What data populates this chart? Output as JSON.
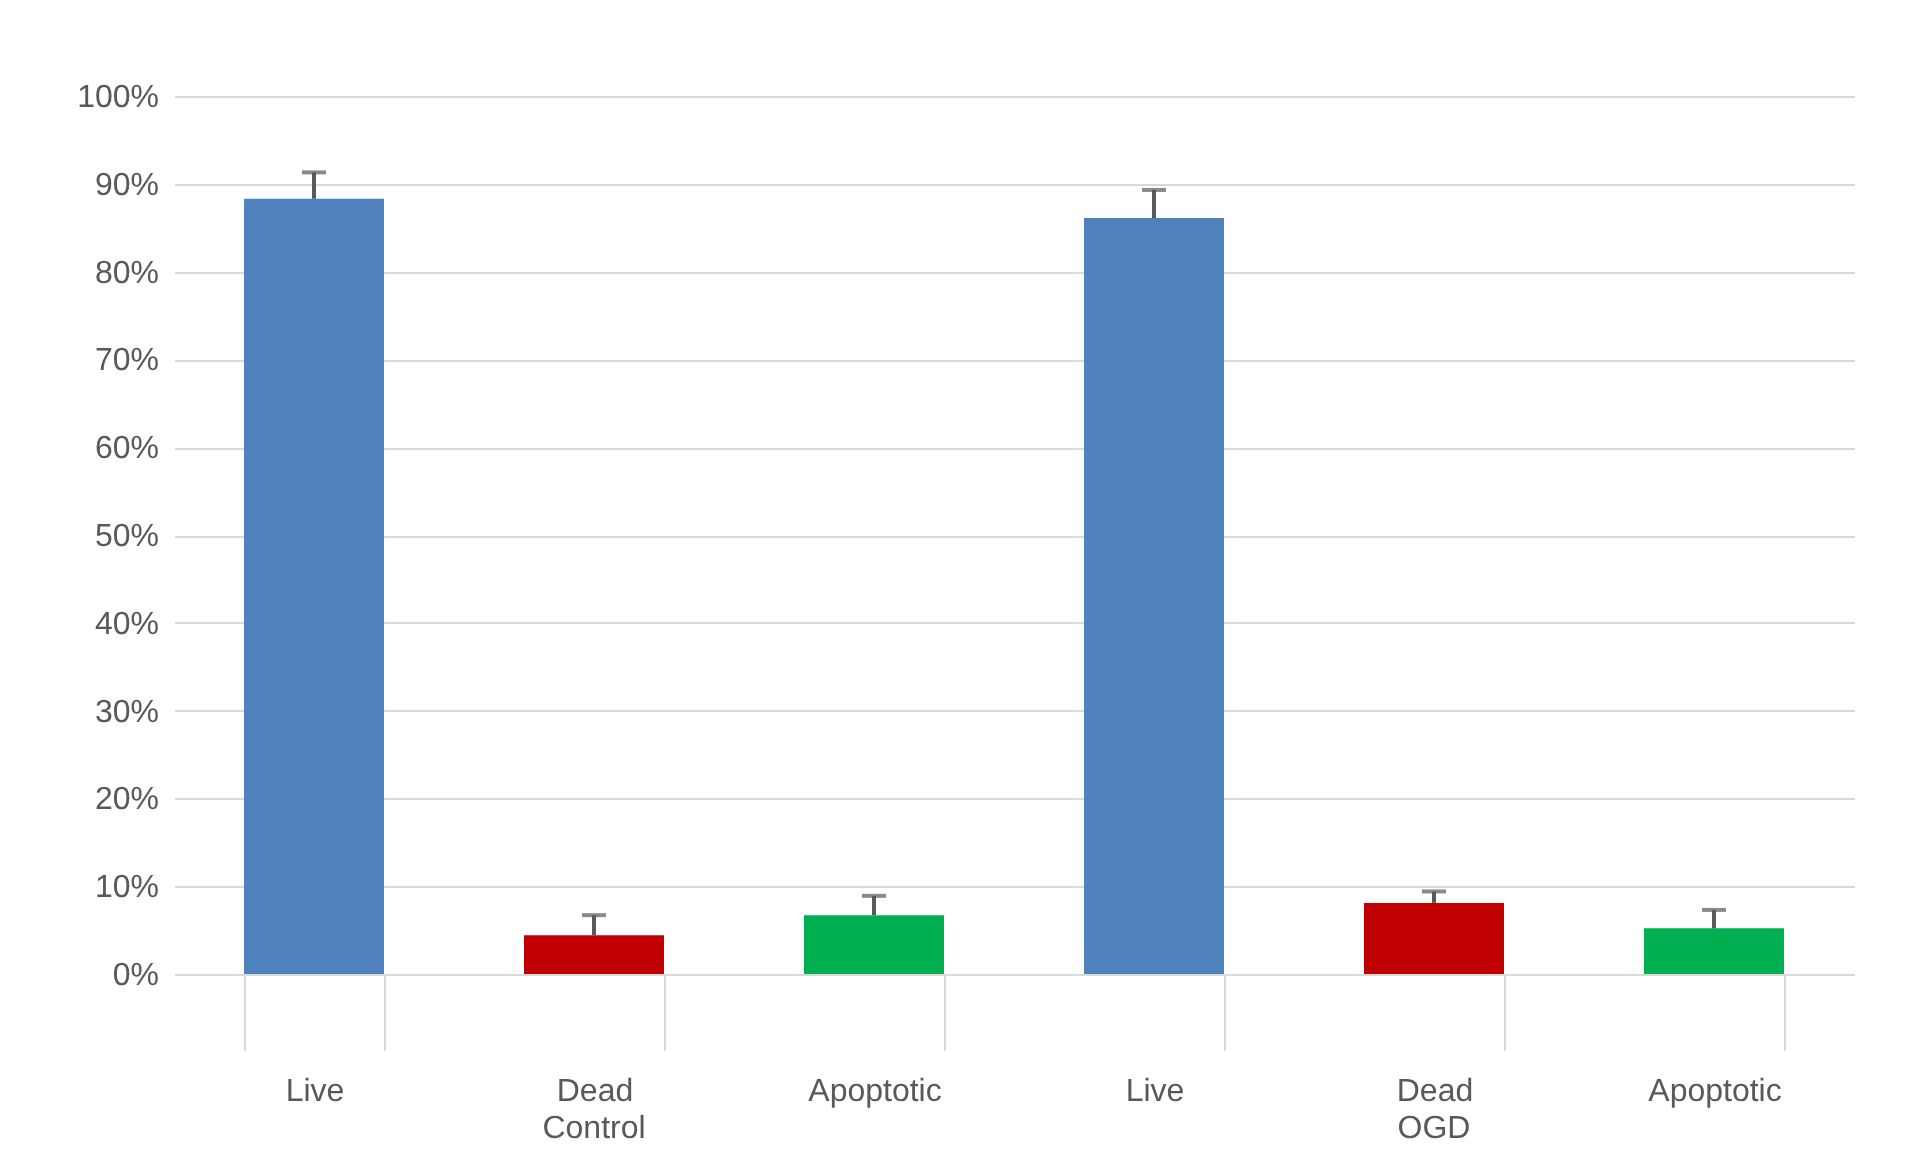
{
  "chart_data": {
    "type": "bar",
    "categories": [
      "Live",
      "Dead",
      "Apoptotic",
      "Live",
      "Dead",
      "Apoptotic"
    ],
    "values": [
      88.3,
      4.4,
      6.7,
      86.1,
      8.1,
      5.2
    ],
    "colors": [
      "#4f81bd",
      "#c00000",
      "#00b050",
      "#4f81bd",
      "#c00000",
      "#00b050"
    ],
    "errors": [
      [
        88.3,
        91.3
      ],
      [
        4.4,
        6.7
      ],
      [
        6.7,
        8.9
      ],
      [
        86.1,
        89.3
      ],
      [
        8.1,
        9.4
      ],
      [
        5.2,
        7.3
      ]
    ],
    "ylim": [
      0,
      100
    ],
    "yticks": [
      {
        "value": 0,
        "label": "0%"
      },
      {
        "value": 10,
        "label": "10%"
      },
      {
        "value": 20,
        "label": "20%"
      },
      {
        "value": 30,
        "label": "30%"
      },
      {
        "value": 40,
        "label": "40%"
      },
      {
        "value": 50,
        "label": "50%"
      },
      {
        "value": 60,
        "label": "60%"
      },
      {
        "value": 70,
        "label": "70%"
      },
      {
        "value": 80,
        "label": "80%"
      },
      {
        "value": 90,
        "label": "90%"
      },
      {
        "value": 100,
        "label": "100%"
      }
    ],
    "annotations": [
      "Control",
      "OGD"
    ],
    "grid": "y"
  }
}
